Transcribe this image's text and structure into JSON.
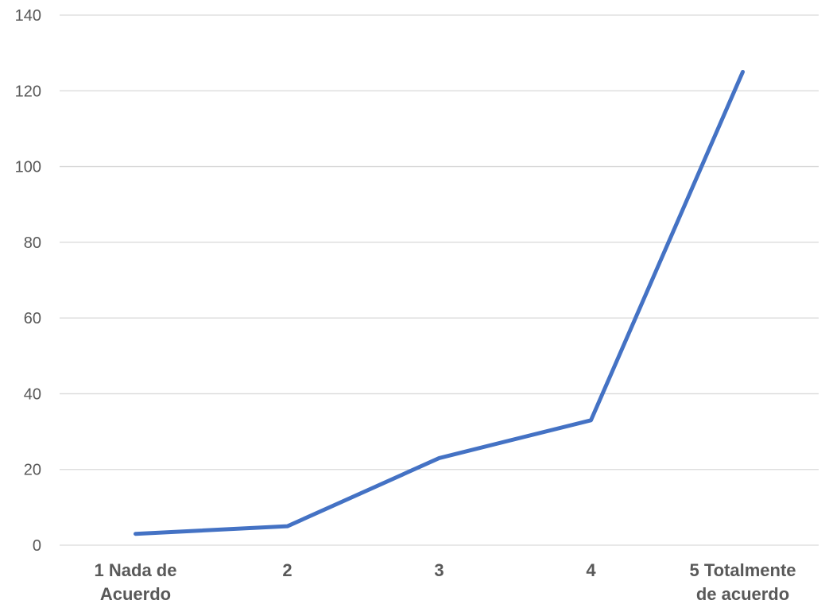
{
  "chart_data": {
    "type": "line",
    "categories": [
      [
        "1 Nada de",
        "Acuerdo"
      ],
      [
        "2"
      ],
      [
        "3"
      ],
      [
        "4"
      ],
      [
        "5 Totalmente",
        "de acuerdo"
      ]
    ],
    "series": [
      {
        "values": [
          3,
          5,
          23,
          33,
          125
        ],
        "color": "#4472c4"
      }
    ],
    "yticks": [
      0,
      20,
      40,
      60,
      80,
      100,
      120,
      140
    ],
    "ylim": [
      0,
      140
    ],
    "grid": true,
    "legend": "none"
  }
}
